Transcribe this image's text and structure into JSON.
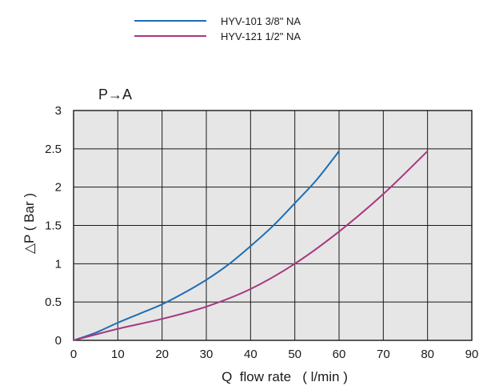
{
  "chart_data": {
    "type": "line",
    "panel_title": "P→A",
    "xlabel": "Q  flow rate   ( l/min )",
    "ylabel": "△P ( Bar )",
    "xlim": [
      0,
      90
    ],
    "ylim": [
      0,
      3
    ],
    "x_ticks": [
      "0",
      "10",
      "20",
      "30",
      "40",
      "50",
      "60",
      "70",
      "80",
      "90"
    ],
    "y_ticks": [
      "0",
      "0.5",
      "1",
      "1.5",
      "2",
      "2.5",
      "3"
    ],
    "grid": true,
    "plot_background": "#e6e6e6",
    "legend_position": "top-center",
    "series": [
      {
        "name": "HYV-101 3/8\" NA",
        "color": "#1f6db5",
        "x": [
          0,
          5,
          10,
          15,
          20,
          25,
          30,
          35,
          40,
          45,
          50,
          55,
          60
        ],
        "y": [
          0,
          0.1,
          0.23,
          0.35,
          0.47,
          0.62,
          0.79,
          0.99,
          1.23,
          1.49,
          1.79,
          2.1,
          2.47
        ]
      },
      {
        "name": "HYV-121 1/2\" NA",
        "color": "#a8377f",
        "x": [
          0,
          10,
          20,
          30,
          40,
          50,
          60,
          70,
          80
        ],
        "y": [
          0,
          0.15,
          0.28,
          0.44,
          0.67,
          1.0,
          1.42,
          1.91,
          2.47
        ]
      }
    ]
  }
}
